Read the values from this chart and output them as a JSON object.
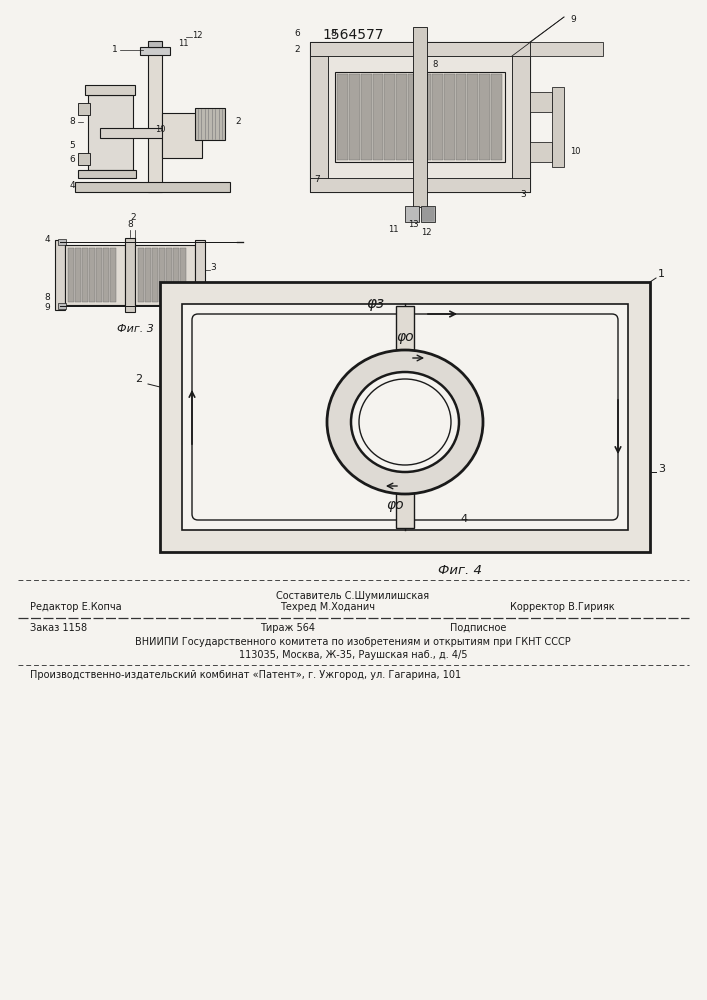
{
  "patent_number": "1564577",
  "bg": "#f5f3ef",
  "fig4_label": "Фиг. 4",
  "fig3_label": "Фиг. 3",
  "phi_z": "φз",
  "phi_0": "φо",
  "lc": "#1a1a1a",
  "footer_sestavitel": "Составитель С.Шумилишская",
  "footer_redaktor": "Редактор Е.Копча",
  "footer_tehred": "Техред М.Ходанич",
  "footer_korrektor": "Корректор В.Гирияк",
  "footer_zakaz": "Заказ 1158",
  "footer_tirazh": "Тираж 564",
  "footer_podpisnoe": "Подписное",
  "footer_vnipi": "ВНИИПИ Государственного комитета по изобретениям и открытиям при ГКНТ СССР",
  "footer_addr": "113035, Москва, Ж-35, Раушская наб., д. 4/5",
  "footer_pub": "Производственно-издательский комбинат «Патент», г. Ужгород, ул. Гагарина, 101"
}
